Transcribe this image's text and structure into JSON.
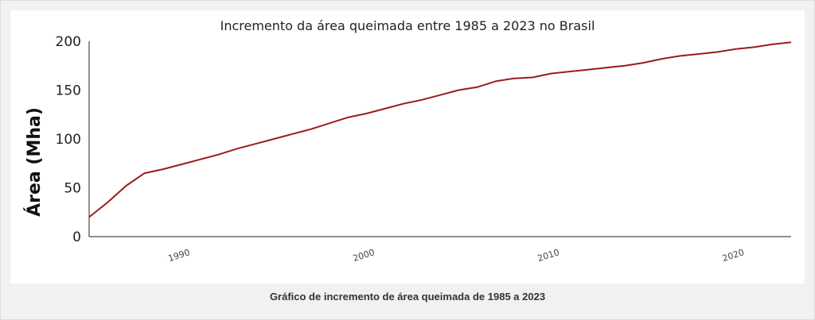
{
  "caption": "Gráfico de incremento de área queimada de 1985 a 2023",
  "chart_data": {
    "type": "line",
    "title": "Incremento da área queimada entre 1985 a 2023 no Brasil",
    "xlabel": "",
    "ylabel": "Área (Mha)",
    "xlim": [
      1985,
      2023
    ],
    "ylim": [
      0,
      200
    ],
    "x_ticks": [
      1990,
      2000,
      2010,
      2020
    ],
    "y_ticks": [
      0,
      50,
      100,
      150,
      200
    ],
    "grid": false,
    "legend": "none",
    "series": [
      {
        "name": "",
        "color": "#9b1c1c",
        "x": [
          1985,
          1986,
          1987,
          1988,
          1989,
          1990,
          1991,
          1992,
          1993,
          1994,
          1995,
          1996,
          1997,
          1998,
          1999,
          2000,
          2001,
          2002,
          2003,
          2004,
          2005,
          2006,
          2007,
          2008,
          2009,
          2010,
          2011,
          2012,
          2013,
          2014,
          2015,
          2016,
          2017,
          2018,
          2019,
          2020,
          2021,
          2022,
          2023
        ],
        "y": [
          20,
          35,
          52,
          65,
          69,
          74,
          79,
          84,
          90,
          95,
          100,
          105,
          110,
          116,
          122,
          126,
          131,
          136,
          140,
          145,
          150,
          153,
          159,
          162,
          163,
          167,
          169,
          171,
          173,
          175,
          178,
          182,
          185,
          187,
          189,
          192,
          194,
          197,
          199
        ]
      }
    ]
  }
}
